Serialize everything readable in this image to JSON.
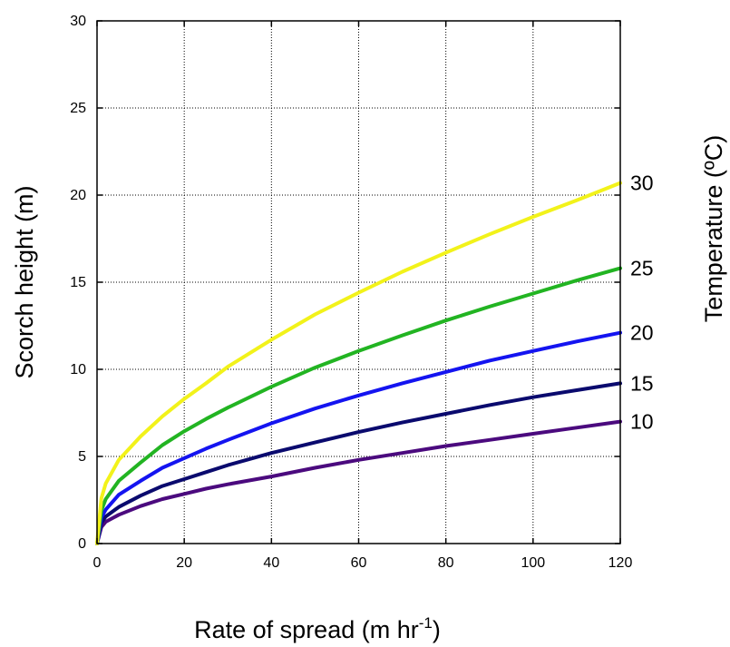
{
  "chart_data": {
    "type": "line",
    "xlabel": "Rate of spread (m hr",
    "xlabel_superscript": "-1",
    "xlabel_suffix": ")",
    "ylabel": "Scorch height (m)",
    "legend_title": "Temperature (ºC)",
    "legend_placement": "right",
    "grid": true,
    "xlim": [
      0,
      120
    ],
    "ylim": [
      0,
      30
    ],
    "x_ticks": [
      "0",
      "20",
      "40",
      "60",
      "80",
      "100",
      "120"
    ],
    "y_ticks": [
      "0",
      "5",
      "10",
      "15",
      "20",
      "25",
      "30"
    ],
    "x": [
      0,
      1,
      2,
      5,
      10,
      15,
      20,
      25,
      30,
      40,
      50,
      60,
      70,
      80,
      90,
      100,
      110,
      120
    ],
    "series": [
      {
        "name": "10",
        "color": "#4b0a7e",
        "values": [
          0,
          0.95,
          1.25,
          1.65,
          2.15,
          2.55,
          2.85,
          3.15,
          3.4,
          3.85,
          4.35,
          4.8,
          5.2,
          5.6,
          5.95,
          6.3,
          6.65,
          7.0
        ]
      },
      {
        "name": "15",
        "color": "#0a0a6e",
        "values": [
          0,
          1.2,
          1.55,
          2.1,
          2.75,
          3.3,
          3.7,
          4.1,
          4.5,
          5.2,
          5.8,
          6.4,
          6.95,
          7.45,
          7.95,
          8.4,
          8.8,
          9.2
        ]
      },
      {
        "name": "20",
        "color": "#1414f0",
        "values": [
          0,
          1.5,
          1.95,
          2.8,
          3.6,
          4.35,
          4.9,
          5.45,
          5.95,
          6.9,
          7.75,
          8.5,
          9.2,
          9.85,
          10.5,
          11.05,
          11.6,
          12.1
        ]
      },
      {
        "name": "25",
        "color": "#22b422",
        "values": [
          0,
          1.9,
          2.55,
          3.6,
          4.65,
          5.65,
          6.45,
          7.15,
          7.8,
          9.0,
          10.1,
          11.05,
          11.95,
          12.8,
          13.6,
          14.35,
          15.1,
          15.8
        ]
      },
      {
        "name": "30",
        "color": "#f2f21a",
        "values": [
          0,
          2.6,
          3.45,
          4.8,
          6.15,
          7.3,
          8.3,
          9.2,
          10.15,
          11.7,
          13.15,
          14.4,
          15.6,
          16.7,
          17.75,
          18.75,
          19.7,
          20.7
        ]
      }
    ]
  }
}
